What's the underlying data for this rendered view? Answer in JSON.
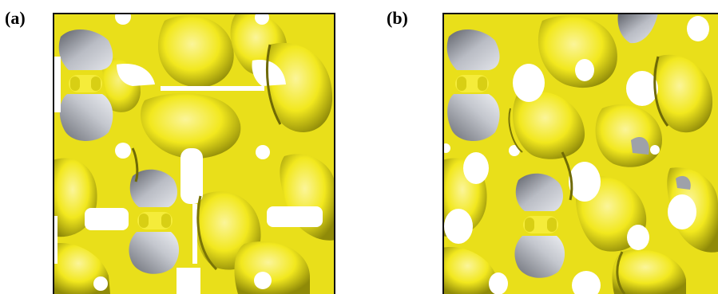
{
  "figure": {
    "panels": [
      {
        "id": "a",
        "label": "(a)"
      },
      {
        "id": "b",
        "label": "(b)"
      }
    ],
    "colors": {
      "surface": "#f2e81e",
      "surface_dark": "#8f8a08",
      "surface_light": "#fbf59a",
      "gray_lobe": "#b9bcc4",
      "gray_dark": "#5d6068",
      "pore": "#ffffff",
      "frame": "#111111"
    }
  }
}
